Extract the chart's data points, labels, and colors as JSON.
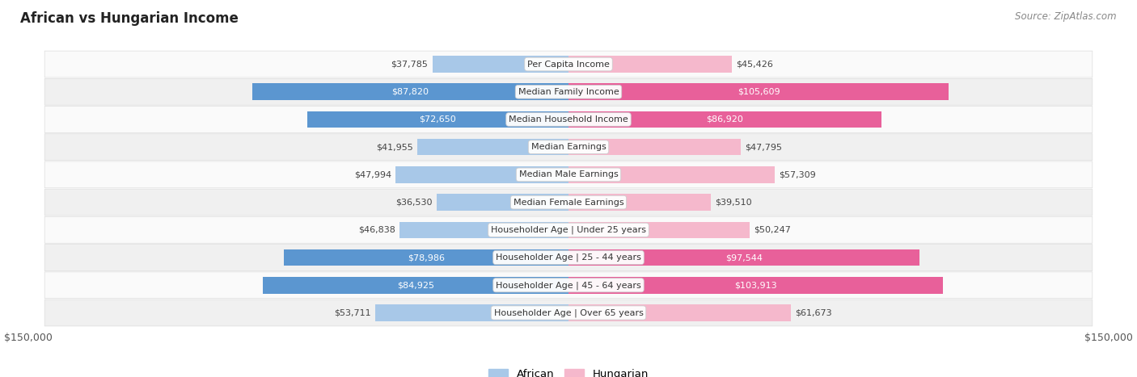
{
  "title": "African vs Hungarian Income",
  "source": "Source: ZipAtlas.com",
  "categories": [
    "Per Capita Income",
    "Median Family Income",
    "Median Household Income",
    "Median Earnings",
    "Median Male Earnings",
    "Median Female Earnings",
    "Householder Age | Under 25 years",
    "Householder Age | 25 - 44 years",
    "Householder Age | 45 - 64 years",
    "Householder Age | Over 65 years"
  ],
  "african_values": [
    37785,
    87820,
    72650,
    41955,
    47994,
    36530,
    46838,
    78986,
    84925,
    53711
  ],
  "hungarian_values": [
    45426,
    105609,
    86920,
    47795,
    57309,
    39510,
    50247,
    97544,
    103913,
    61673
  ],
  "african_labels": [
    "$37,785",
    "$87,820",
    "$72,650",
    "$41,955",
    "$47,994",
    "$36,530",
    "$46,838",
    "$78,986",
    "$84,925",
    "$53,711"
  ],
  "hungarian_labels": [
    "$45,426",
    "$105,609",
    "$86,920",
    "$47,795",
    "$57,309",
    "$39,510",
    "$50,247",
    "$97,544",
    "$103,913",
    "$61,673"
  ],
  "max_value": 150000,
  "african_color_light": "#a8c8e8",
  "african_color_dark": "#5b96d0",
  "hungarian_color_light": "#f5b8cc",
  "hungarian_color_dark": "#e8609a",
  "dark_threshold": 65000,
  "row_bg_odd": "#f0f0f0",
  "row_bg_even": "#fafafa",
  "bg_color": "#ffffff"
}
